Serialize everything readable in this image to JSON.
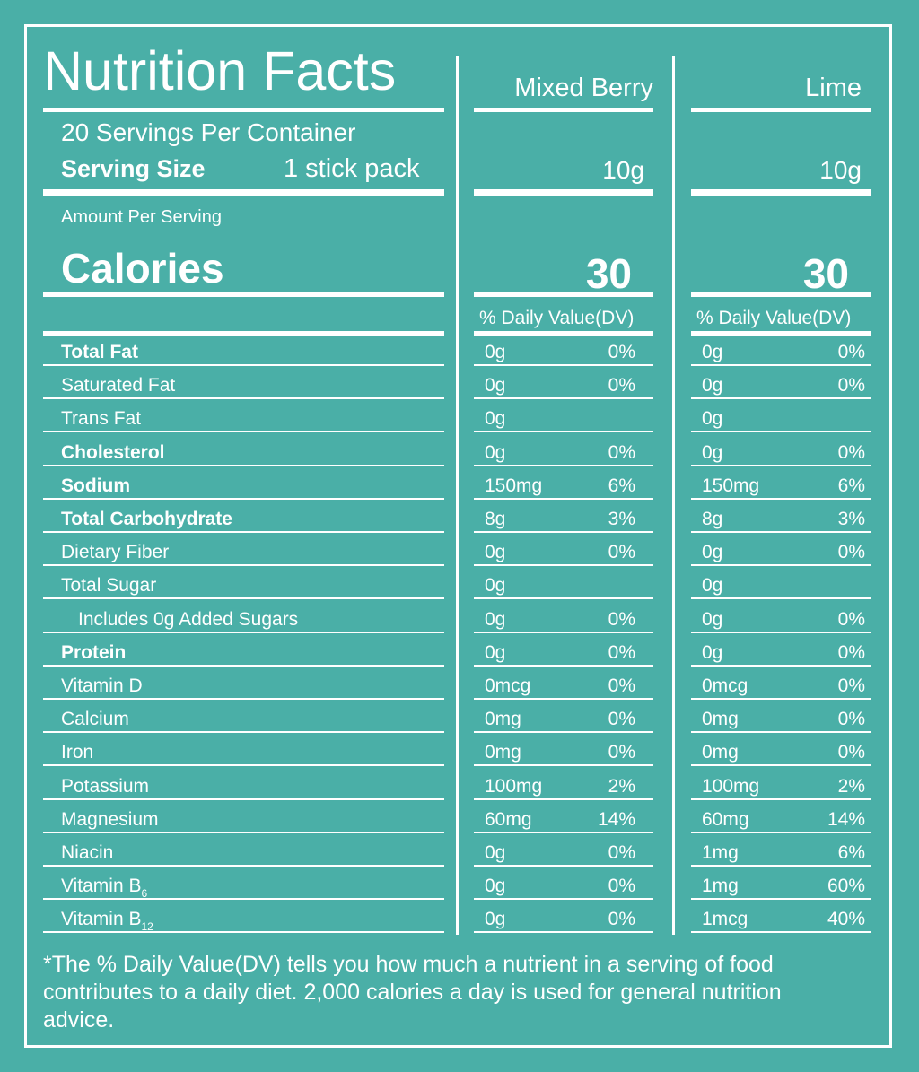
{
  "title": "Nutrition Facts",
  "servings_per_container": "20 Servings Per Container",
  "serving_size_label": "Serving Size",
  "serving_size_value": "1 stick pack",
  "amount_per_serving": "Amount Per Serving",
  "calories_label": "Calories",
  "products": [
    {
      "name": "Mixed Berry",
      "serving": "10g",
      "calories": "30",
      "dv_header": "% Daily Value(DV)"
    },
    {
      "name": "Lime",
      "serving": "10g",
      "calories": "30",
      "dv_header": "% Daily Value(DV)"
    }
  ],
  "nutrients": [
    {
      "label": "Total Fat",
      "bold": true,
      "indent": false,
      "values": [
        [
          "0g",
          "0%"
        ],
        [
          "0g",
          "0%"
        ]
      ]
    },
    {
      "label": "Saturated Fat",
      "bold": false,
      "indent": false,
      "values": [
        [
          "0g",
          "0%"
        ],
        [
          "0g",
          "0%"
        ]
      ]
    },
    {
      "label": "Trans Fat",
      "bold": false,
      "indent": false,
      "values": [
        [
          "0g",
          ""
        ],
        [
          "0g",
          ""
        ]
      ]
    },
    {
      "label": "Cholesterol",
      "bold": true,
      "indent": false,
      "values": [
        [
          "0g",
          "0%"
        ],
        [
          "0g",
          "0%"
        ]
      ]
    },
    {
      "label": "Sodium",
      "bold": true,
      "indent": false,
      "values": [
        [
          "150mg",
          "6%"
        ],
        [
          "150mg",
          "6%"
        ]
      ]
    },
    {
      "label": "Total Carbohydrate",
      "bold": true,
      "indent": false,
      "values": [
        [
          "8g",
          "3%"
        ],
        [
          "8g",
          "3%"
        ]
      ]
    },
    {
      "label": "Dietary Fiber",
      "bold": false,
      "indent": false,
      "values": [
        [
          "0g",
          "0%"
        ],
        [
          "0g",
          "0%"
        ]
      ]
    },
    {
      "label": "Total Sugar",
      "bold": false,
      "indent": false,
      "values": [
        [
          "0g",
          ""
        ],
        [
          "0g",
          ""
        ]
      ]
    },
    {
      "label": "Includes 0g Added Sugars",
      "bold": false,
      "indent": true,
      "values": [
        [
          "0g",
          "0%"
        ],
        [
          "0g",
          "0%"
        ]
      ]
    },
    {
      "label": "Protein",
      "bold": true,
      "indent": false,
      "values": [
        [
          "0g",
          "0%"
        ],
        [
          "0g",
          "0%"
        ]
      ]
    },
    {
      "label": "Vitamin D",
      "bold": false,
      "indent": false,
      "values": [
        [
          "0mcg",
          "0%"
        ],
        [
          "0mcg",
          "0%"
        ]
      ]
    },
    {
      "label": "Calcium",
      "bold": false,
      "indent": false,
      "values": [
        [
          "0mg",
          "0%"
        ],
        [
          "0mg",
          "0%"
        ]
      ]
    },
    {
      "label": "Iron",
      "bold": false,
      "indent": false,
      "values": [
        [
          "0mg",
          "0%"
        ],
        [
          "0mg",
          "0%"
        ]
      ]
    },
    {
      "label": "Potassium",
      "bold": false,
      "indent": false,
      "values": [
        [
          "100mg",
          "2%"
        ],
        [
          "100mg",
          "2%"
        ]
      ]
    },
    {
      "label": "Magnesium",
      "bold": false,
      "indent": false,
      "values": [
        [
          "60mg",
          "14%"
        ],
        [
          "60mg",
          "14%"
        ]
      ]
    },
    {
      "label": "Niacin",
      "bold": false,
      "indent": false,
      "values": [
        [
          "0g",
          "0%"
        ],
        [
          "1mg",
          "6%"
        ]
      ]
    },
    {
      "label": "Vitamin B",
      "sub": "6",
      "bold": false,
      "indent": false,
      "values": [
        [
          "0g",
          "0%"
        ],
        [
          "1mg",
          "60%"
        ]
      ]
    },
    {
      "label": "Vitamin B",
      "sub": "12",
      "bold": false,
      "indent": false,
      "values": [
        [
          "0g",
          "0%"
        ],
        [
          "1mcg",
          "40%"
        ]
      ]
    }
  ],
  "footnote": "*The % Daily Value(DV) tells you how much a nutrient in a serving of food contributes to a daily diet. 2,000 calories a day is used for general nutrition advice.",
  "colors": {
    "background": "#4aafa7",
    "foreground": "#ffffff"
  }
}
